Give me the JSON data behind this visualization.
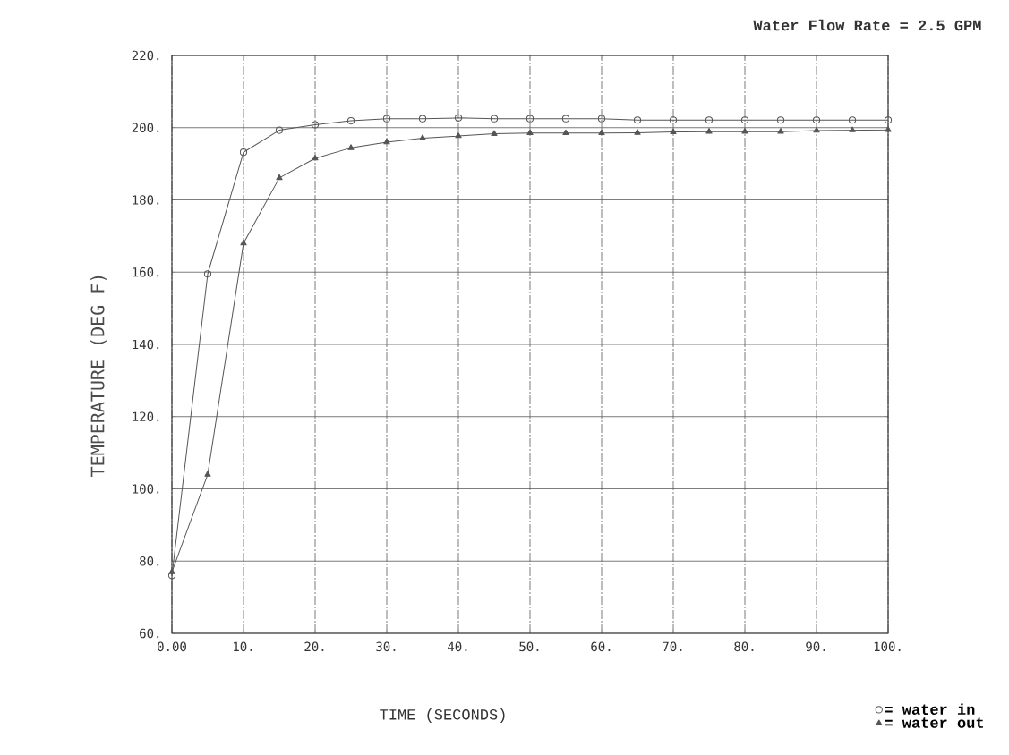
{
  "chart_data": {
    "type": "line",
    "title": "Water Flow Rate = 2.5 GPM",
    "xlabel": "TIME (SECONDS)",
    "ylabel": "TEMPERATURE (DEG F)",
    "x": [
      0,
      5,
      10,
      15,
      20,
      25,
      30,
      35,
      40,
      45,
      50,
      55,
      60,
      65,
      70,
      75,
      80,
      85,
      90,
      95,
      100
    ],
    "series": [
      {
        "name": "= water in",
        "color": "#555555",
        "marker": "circle",
        "values": [
          76,
          159.5,
          193.2,
          199.3,
          200.8,
          201.9,
          202.5,
          202.5,
          202.7,
          202.5,
          202.5,
          202.5,
          202.5,
          202.1,
          202.1,
          202.1,
          202.1,
          202.1,
          202.1,
          202.1,
          202.1
        ]
      },
      {
        "name": "= water out",
        "color": "#555555",
        "marker": "triangle",
        "values": [
          77,
          104,
          168,
          186.1,
          191.5,
          194.4,
          196,
          197.1,
          197.7,
          198.3,
          198.5,
          198.5,
          198.5,
          198.6,
          198.8,
          198.9,
          198.9,
          198.9,
          199.2,
          199.3,
          199.4
        ]
      }
    ],
    "xlim": [
      0,
      100
    ],
    "ylim": [
      60,
      220
    ],
    "xticks": [
      {
        "value": 0,
        "label": "0.00"
      },
      {
        "value": 10,
        "label": "10."
      },
      {
        "value": 20,
        "label": "20."
      },
      {
        "value": 30,
        "label": "30."
      },
      {
        "value": 40,
        "label": "40."
      },
      {
        "value": 50,
        "label": "50."
      },
      {
        "value": 60,
        "label": "60."
      },
      {
        "value": 70,
        "label": "70."
      },
      {
        "value": 80,
        "label": "80."
      },
      {
        "value": 90,
        "label": "90."
      },
      {
        "value": 100,
        "label": "100."
      }
    ],
    "yticks": [
      {
        "value": 60,
        "label": "60."
      },
      {
        "value": 80,
        "label": "80."
      },
      {
        "value": 100,
        "label": "100."
      },
      {
        "value": 120,
        "label": "120."
      },
      {
        "value": 140,
        "label": "140."
      },
      {
        "value": 160,
        "label": "160."
      },
      {
        "value": 180,
        "label": "180."
      },
      {
        "value": 200,
        "label": "200."
      },
      {
        "value": 220,
        "label": "220."
      }
    ],
    "grid": true,
    "legend": "bottom right",
    "line_style": "solid"
  }
}
